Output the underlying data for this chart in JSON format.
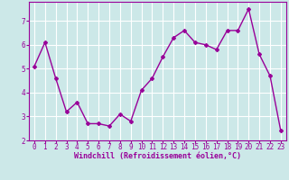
{
  "x": [
    0,
    1,
    2,
    3,
    4,
    5,
    6,
    7,
    8,
    9,
    10,
    11,
    12,
    13,
    14,
    15,
    16,
    17,
    18,
    19,
    20,
    21,
    22,
    23
  ],
  "y": [
    5.1,
    6.1,
    4.6,
    3.2,
    3.6,
    2.7,
    2.7,
    2.6,
    3.1,
    2.8,
    4.1,
    4.6,
    5.5,
    6.3,
    6.6,
    6.1,
    6.0,
    5.8,
    6.6,
    6.6,
    7.5,
    5.6,
    4.7,
    2.4
  ],
  "line_color": "#990099",
  "marker": "D",
  "marker_size": 2.0,
  "bg_color": "#cce8e8",
  "grid_color": "#ffffff",
  "axis_color": "#990099",
  "tick_color": "#990099",
  "xlabel": "Windchill (Refroidissement éolien,°C)",
  "xlabel_fontsize": 6.0,
  "ylim": [
    2.0,
    7.8
  ],
  "yticks": [
    2,
    3,
    4,
    5,
    6,
    7
  ],
  "xticks": [
    0,
    1,
    2,
    3,
    4,
    5,
    6,
    7,
    8,
    9,
    10,
    11,
    12,
    13,
    14,
    15,
    16,
    17,
    18,
    19,
    20,
    21,
    22,
    23
  ],
  "tick_fontsize": 5.5,
  "line_width": 1.0
}
